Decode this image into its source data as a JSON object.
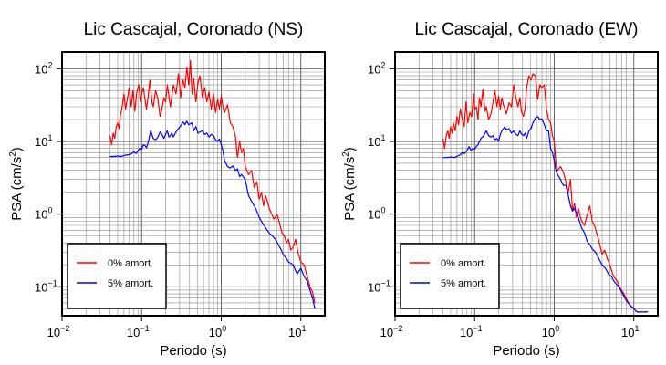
{
  "panels": [
    {
      "chart_data": {
        "type": "line",
        "title": "Lic Cascajal, Coronado (NS)",
        "xlabel": "Periodo (s)",
        "ylabel_main": "PSA (cm/s",
        "ylabel_sup": "2",
        "ylabel_close": ")",
        "xscale": "log",
        "yscale": "log",
        "xlim": [
          0.01,
          20
        ],
        "ylim": [
          0.04,
          170
        ],
        "grid": true,
        "x_ticks": [
          {
            "base": "10",
            "exp": "−2",
            "value": 0.01
          },
          {
            "base": "10",
            "exp": "−1",
            "value": 0.1
          },
          {
            "base": "10",
            "exp": "0",
            "value": 1
          },
          {
            "base": "10",
            "exp": "1",
            "value": 10
          }
        ],
        "y_ticks": [
          {
            "base": "10",
            "exp": "−1",
            "value": 0.1
          },
          {
            "base": "10",
            "exp": "0",
            "value": 1
          },
          {
            "base": "10",
            "exp": "1",
            "value": 10
          },
          {
            "base": "10",
            "exp": "2",
            "value": 100
          }
        ],
        "legend_placement": "bottom-left",
        "series": [
          {
            "name": "0% amort.",
            "color": "#ff0000",
            "x": [
              0.04,
              0.042,
              0.044,
              0.046,
              0.048,
              0.05,
              0.052,
              0.054,
              0.057,
              0.06,
              0.063,
              0.066,
              0.07,
              0.074,
              0.078,
              0.082,
              0.087,
              0.092,
              0.097,
              0.1,
              0.105,
              0.11,
              0.115,
              0.12,
              0.127,
              0.135,
              0.14,
              0.15,
              0.16,
              0.17,
              0.18,
              0.19,
              0.2,
              0.21,
              0.22,
              0.23,
              0.25,
              0.27,
              0.29,
              0.31,
              0.33,
              0.35,
              0.37,
              0.39,
              0.41,
              0.43,
              0.45,
              0.48,
              0.51,
              0.54,
              0.58,
              0.62,
              0.66,
              0.7,
              0.75,
              0.8,
              0.85,
              0.9,
              0.95,
              1.0,
              1.05,
              1.1,
              1.2,
              1.3,
              1.4,
              1.5,
              1.6,
              1.7,
              1.8,
              1.9,
              2.0,
              2.2,
              2.4,
              2.6,
              2.8,
              3.0,
              3.2,
              3.4,
              3.6,
              3.8,
              4.0,
              4.3,
              4.6,
              5.0,
              5.4,
              5.8,
              6.2,
              6.6,
              7.0,
              7.5,
              8.0,
              8.6,
              9.2,
              10.0,
              11.0,
              12.0,
              13.0,
              14.0,
              15.0
            ],
            "y": [
              12,
              9,
              13,
              11,
              16,
              18,
              15,
              22,
              30,
              45,
              28,
              38,
              55,
              30,
              50,
              26,
              48,
              60,
              35,
              45,
              55,
              38,
              28,
              40,
              70,
              35,
              30,
              50,
              38,
              22,
              28,
              40,
              35,
              60,
              42,
              30,
              60,
              45,
              85,
              40,
              70,
              55,
              105,
              60,
              130,
              45,
              75,
              35,
              65,
              80,
              40,
              55,
              35,
              48,
              28,
              45,
              25,
              38,
              28,
              42,
              30,
              25,
              32,
              18,
              16,
              12,
              6,
              10,
              7,
              8,
              4.5,
              3.5,
              4.0,
              2.3,
              2.8,
              1.6,
              2.0,
              1.3,
              1.8,
              1.5,
              1.2,
              1.0,
              0.85,
              1.0,
              0.75,
              0.55,
              0.5,
              0.4,
              0.45,
              0.32,
              0.35,
              0.45,
              0.3,
              0.22,
              0.2,
              0.14,
              0.1,
              0.085,
              0.06
            ]
          },
          {
            "name": "5% amort.",
            "color": "#0000ff",
            "x": [
              0.04,
              0.045,
              0.05,
              0.055,
              0.06,
              0.065,
              0.07,
              0.075,
              0.08,
              0.085,
              0.09,
              0.095,
              0.1,
              0.105,
              0.11,
              0.115,
              0.12,
              0.13,
              0.14,
              0.15,
              0.16,
              0.17,
              0.18,
              0.19,
              0.2,
              0.21,
              0.22,
              0.23,
              0.24,
              0.25,
              0.27,
              0.29,
              0.31,
              0.33,
              0.35,
              0.37,
              0.39,
              0.41,
              0.43,
              0.45,
              0.48,
              0.51,
              0.54,
              0.58,
              0.62,
              0.66,
              0.7,
              0.75,
              0.8,
              0.85,
              0.9,
              0.95,
              1.0,
              1.05,
              1.1,
              1.2,
              1.3,
              1.4,
              1.5,
              1.6,
              1.7,
              1.8,
              2.0,
              2.2,
              2.4,
              2.6,
              2.8,
              3.0,
              3.3,
              3.6,
              4.0,
              4.4,
              4.8,
              5.2,
              5.6,
              6.0,
              6.5,
              7.0,
              7.5,
              8.0,
              8.5,
              9.0,
              10.0,
              11.0,
              12.0,
              13.0,
              14.0,
              15.0
            ],
            "y": [
              6.2,
              6.2,
              6.3,
              6.2,
              6.4,
              6.5,
              6.6,
              6.8,
              7.2,
              6.8,
              7.5,
              8.0,
              7.8,
              9.0,
              8.8,
              8.2,
              9.5,
              14.0,
              11.0,
              10.5,
              11.5,
              13.5,
              12.5,
              11.0,
              12.5,
              14.0,
              11.5,
              12.0,
              13.0,
              11.5,
              13.5,
              15.0,
              16.5,
              18.5,
              17.0,
              19.0,
              17.0,
              17.5,
              18.0,
              14.0,
              16.0,
              13.0,
              13.5,
              14.0,
              12.5,
              13.0,
              11.5,
              12.5,
              12.0,
              10.5,
              10.0,
              10.8,
              9.0,
              7.5,
              5.5,
              4.5,
              4.3,
              4.6,
              4.0,
              4.2,
              3.3,
              3.5,
              3.0,
              1.8,
              1.5,
              1.3,
              1.1,
              0.9,
              0.75,
              0.65,
              0.55,
              0.5,
              0.45,
              0.38,
              0.33,
              0.28,
              0.25,
              0.22,
              0.21,
              0.2,
              0.17,
              0.15,
              0.18,
              0.14,
              0.12,
              0.09,
              0.07,
              0.05
            ]
          }
        ]
      }
    },
    {
      "chart_data": {
        "type": "line",
        "title": "Lic Cascajal, Coronado (EW)",
        "xlabel": "Periodo (s)",
        "ylabel_main": "PSA (cm/s",
        "ylabel_sup": "2",
        "ylabel_close": ")",
        "xscale": "log",
        "yscale": "log",
        "xlim": [
          0.01,
          20
        ],
        "ylim": [
          0.04,
          170
        ],
        "grid": true,
        "x_ticks": [
          {
            "base": "10",
            "exp": "−2",
            "value": 0.01
          },
          {
            "base": "10",
            "exp": "−1",
            "value": 0.1
          },
          {
            "base": "10",
            "exp": "0",
            "value": 1
          },
          {
            "base": "10",
            "exp": "1",
            "value": 10
          }
        ],
        "y_ticks": [
          {
            "base": "10",
            "exp": "−1",
            "value": 0.1
          },
          {
            "base": "10",
            "exp": "0",
            "value": 1
          },
          {
            "base": "10",
            "exp": "1",
            "value": 10
          },
          {
            "base": "10",
            "exp": "2",
            "value": 100
          }
        ],
        "legend_placement": "bottom-left",
        "series": [
          {
            "name": "0% amort.",
            "color": "#ff0000",
            "x": [
              0.04,
              0.042,
              0.044,
              0.046,
              0.048,
              0.05,
              0.052,
              0.054,
              0.057,
              0.06,
              0.063,
              0.066,
              0.07,
              0.074,
              0.078,
              0.082,
              0.087,
              0.092,
              0.097,
              0.1,
              0.105,
              0.11,
              0.115,
              0.12,
              0.127,
              0.135,
              0.14,
              0.15,
              0.16,
              0.17,
              0.18,
              0.19,
              0.2,
              0.21,
              0.22,
              0.23,
              0.25,
              0.27,
              0.29,
              0.31,
              0.33,
              0.35,
              0.37,
              0.39,
              0.41,
              0.43,
              0.45,
              0.48,
              0.51,
              0.54,
              0.58,
              0.62,
              0.66,
              0.7,
              0.75,
              0.8,
              0.85,
              0.9,
              0.95,
              1.0,
              1.05,
              1.1,
              1.2,
              1.3,
              1.4,
              1.5,
              1.6,
              1.7,
              1.8,
              1.9,
              2.0,
              2.2,
              2.4,
              2.6,
              2.8,
              3.0,
              3.2,
              3.4,
              3.6,
              3.8,
              4.0,
              4.3,
              4.6,
              5.0,
              5.4,
              5.8,
              6.2,
              6.6,
              7.0,
              7.5,
              8.0,
              8.6,
              9.2,
              10.0,
              11.0,
              12.0,
              13.0,
              14.0,
              15.0
            ],
            "y": [
              11,
              8,
              12,
              14,
              11,
              16,
              13,
              18,
              14,
              22,
              17,
              28,
              20,
              16,
              35,
              18,
              25,
              22,
              45,
              28,
              30,
              20,
              40,
              30,
              52,
              26,
              30,
              20,
              24,
              35,
              50,
              30,
              42,
              28,
              40,
              32,
              24,
              34,
              30,
              60,
              40,
              30,
              40,
              25,
              22,
              28,
              55,
              80,
              70,
              85,
              80,
              38,
              60,
              55,
              60,
              28,
              20,
              18,
              12,
              10,
              5.0,
              4.0,
              4.5,
              3.8,
              2.8,
              2.0,
              3.0,
              1.1,
              1.4,
              0.9,
              1.2,
              0.8,
              0.7,
              1.0,
              1.3,
              0.8,
              0.7,
              0.55,
              0.45,
              0.35,
              0.28,
              0.32,
              0.25,
              0.2,
              0.15,
              0.13,
              0.12,
              0.1,
              0.09,
              0.08,
              0.07,
              0.06,
              0.055,
              0.05,
              0.045,
              0.045,
              0.045,
              0.045,
              0.045
            ]
          },
          {
            "name": "5% amort.",
            "color": "#0000ff",
            "x": [
              0.04,
              0.045,
              0.05,
              0.055,
              0.06,
              0.065,
              0.07,
              0.075,
              0.08,
              0.085,
              0.09,
              0.095,
              0.1,
              0.105,
              0.11,
              0.115,
              0.12,
              0.13,
              0.14,
              0.15,
              0.16,
              0.17,
              0.18,
              0.19,
              0.2,
              0.21,
              0.22,
              0.23,
              0.24,
              0.25,
              0.27,
              0.29,
              0.31,
              0.33,
              0.35,
              0.37,
              0.39,
              0.41,
              0.43,
              0.45,
              0.48,
              0.51,
              0.54,
              0.58,
              0.62,
              0.66,
              0.7,
              0.75,
              0.8,
              0.85,
              0.9,
              0.95,
              1.0,
              1.05,
              1.1,
              1.2,
              1.3,
              1.4,
              1.5,
              1.6,
              1.7,
              1.8,
              2.0,
              2.2,
              2.4,
              2.6,
              2.8,
              3.0,
              3.3,
              3.6,
              4.0,
              4.4,
              4.8,
              5.2,
              5.6,
              6.0,
              6.5,
              7.0,
              7.5,
              8.0,
              8.5,
              9.0,
              10.0,
              11.0,
              12.0,
              13.0,
              14.0,
              15.0
            ],
            "y": [
              6.0,
              6.0,
              6.1,
              6.0,
              6.2,
              6.5,
              7.0,
              6.8,
              7.5,
              8.5,
              7.5,
              8.0,
              7.8,
              8.5,
              9.0,
              10.0,
              11.0,
              12.0,
              14.0,
              12.0,
              11.5,
              12.0,
              10.5,
              11.0,
              10.0,
              12.5,
              14.0,
              15.0,
              16.0,
              14.5,
              15.0,
              13.0,
              14.0,
              12.5,
              12.0,
              14.0,
              12.5,
              12.0,
              13.0,
              11.0,
              14.0,
              15.0,
              18.0,
              21.0,
              22.0,
              20.0,
              20.5,
              17.0,
              14.0,
              14.0,
              8.0,
              7.0,
              5.5,
              4.0,
              3.5,
              3.0,
              2.5,
              2.5,
              1.8,
              1.3,
              1.1,
              1.2,
              0.9,
              0.65,
              0.55,
              0.42,
              0.38,
              0.33,
              0.3,
              0.25,
              0.2,
              0.18,
              0.15,
              0.14,
              0.12,
              0.11,
              0.1,
              0.085,
              0.075,
              0.065,
              0.06,
              0.055,
              0.05,
              0.045,
              0.045,
              0.045,
              0.045,
              0.045
            ]
          }
        ]
      }
    }
  ]
}
